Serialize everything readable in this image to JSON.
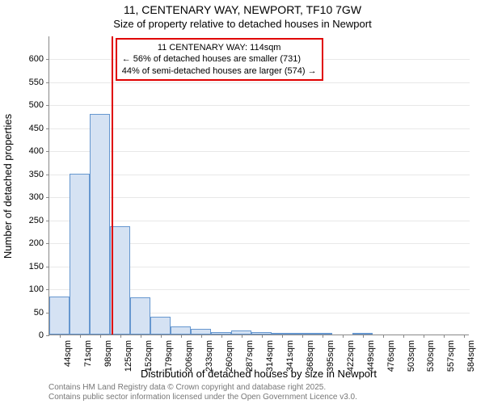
{
  "chart": {
    "type": "histogram",
    "title": "11, CENTENARY WAY, NEWPORT, TF10 7GW",
    "subtitle": "Size of property relative to detached houses in Newport",
    "ylabel": "Number of detached properties",
    "xlabel": "Distribution of detached houses by size in Newport",
    "background_color": "#ffffff",
    "bar_fill": "#d5e2f3",
    "bar_border": "#6697cf",
    "grid_color": "#e8e8e8",
    "marker_color": "#e00000",
    "callout_border": "#e00000",
    "title_fontsize": 14,
    "subtitle_fontsize": 13,
    "axis_label_fontsize": 13,
    "tick_fontsize": 11,
    "callout_fontsize": 11,
    "x_min": 30,
    "x_max": 592,
    "ylim": [
      0,
      650
    ],
    "ytick_step": 50,
    "yticks": [
      0,
      50,
      100,
      150,
      200,
      250,
      300,
      350,
      400,
      450,
      500,
      550,
      600
    ],
    "x_tick_start": 44,
    "x_tick_step": 27,
    "x_ticks_count": 21,
    "bar_bin_width": 27,
    "marker_value": 114,
    "bars": [
      {
        "x0": 30,
        "count": 83
      },
      {
        "x0": 57,
        "count": 350
      },
      {
        "x0": 84,
        "count": 480
      },
      {
        "x0": 111,
        "count": 235
      },
      {
        "x0": 138,
        "count": 80
      },
      {
        "x0": 165,
        "count": 38
      },
      {
        "x0": 192,
        "count": 18
      },
      {
        "x0": 219,
        "count": 12
      },
      {
        "x0": 246,
        "count": 6
      },
      {
        "x0": 273,
        "count": 8
      },
      {
        "x0": 300,
        "count": 6
      },
      {
        "x0": 327,
        "count": 3
      },
      {
        "x0": 354,
        "count": 2
      },
      {
        "x0": 381,
        "count": 1
      },
      {
        "x0": 408,
        "count": 0
      },
      {
        "x0": 435,
        "count": 1
      },
      {
        "x0": 462,
        "count": 0
      },
      {
        "x0": 489,
        "count": 0
      },
      {
        "x0": 516,
        "count": 0
      },
      {
        "x0": 543,
        "count": 0
      },
      {
        "x0": 570,
        "count": 0
      }
    ],
    "callout": {
      "line1": "11 CENTENARY WAY: 114sqm",
      "line2": "← 56% of detached houses are smaller (731)",
      "line3": "44% of semi-detached houses are larger (574) →"
    },
    "attribution": {
      "line1": "Contains HM Land Registry data © Crown copyright and database right 2025.",
      "line2": "Contains public sector information licensed under the Open Government Licence v3.0."
    }
  }
}
